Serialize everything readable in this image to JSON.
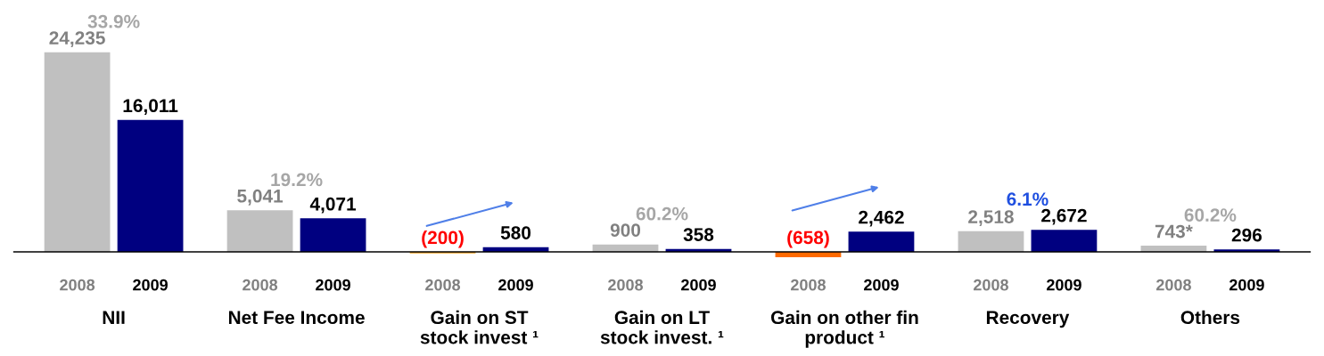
{
  "chart_data": {
    "type": "bar",
    "categories": [
      "NII",
      "Net Fee Income",
      "Gain on ST\nstock invest ¹",
      "Gain on LT\nstock invest. ¹",
      "Gain on other fin\nproduct ¹",
      "Recovery",
      "Others"
    ],
    "series": [
      {
        "name": "2008",
        "color": "#c0c0c0",
        "colors": [
          "#c0c0c0",
          "#c0c0c0",
          "#f0a020",
          "#c0c0c0",
          "#ff6a00",
          "#c0c0c0",
          "#c0c0c0"
        ],
        "values": [
          24235,
          5041,
          -200,
          900,
          -658,
          2518,
          743
        ],
        "value_labels": [
          "24,235",
          "5,041",
          "(200)",
          "900",
          "(658)",
          "2,518",
          "743*"
        ]
      },
      {
        "name": "2009",
        "color": "#000080",
        "values": [
          16011,
          4071,
          580,
          358,
          2462,
          2672,
          296
        ],
        "value_labels": [
          "16,011",
          "4,071",
          "580",
          "358",
          "2,462",
          "2,672",
          "296"
        ]
      }
    ],
    "annotations": [
      "33.9%",
      "19.2%",
      "60.2%",
      "6.1%",
      "60.2%"
    ],
    "tick_labels": "x",
    "legend": false,
    "grid": false
  }
}
